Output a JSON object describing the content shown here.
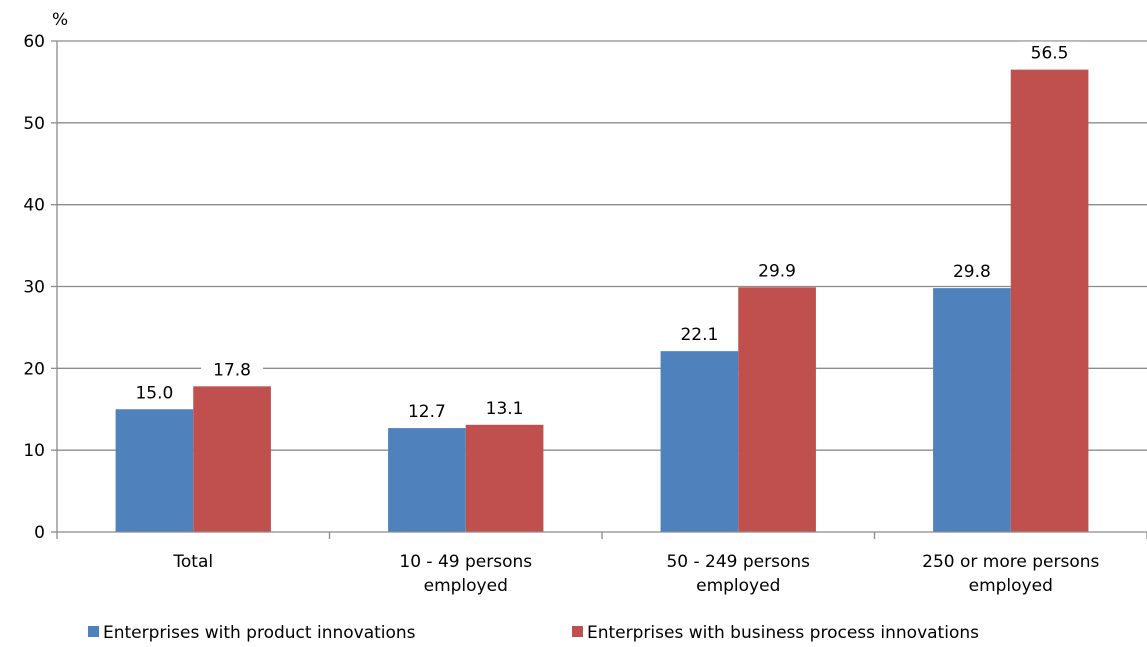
{
  "chart_data": {
    "type": "bar",
    "unit": "%",
    "categories": [
      [
        "Total"
      ],
      [
        "10 - 49 persons",
        "employed"
      ],
      [
        "50 - 249 persons",
        "employed"
      ],
      [
        "250 or more persons",
        "employed"
      ]
    ],
    "series": [
      {
        "name": "Enterprises with product innovations",
        "color": "#4f81bd",
        "values": [
          15.0,
          12.7,
          22.1,
          29.8
        ],
        "labels": [
          "15.0",
          "12.7",
          "22.1",
          "29.8"
        ]
      },
      {
        "name": "Enterprises with business process innovations",
        "color": "#c0504d",
        "values": [
          17.8,
          13.1,
          29.9,
          56.5
        ],
        "labels": [
          "17.8",
          "13.1",
          "29.9",
          "56.5"
        ]
      }
    ],
    "ylim": [
      0,
      60
    ],
    "yticks": [
      0,
      10,
      20,
      30,
      40,
      50,
      60
    ],
    "grid": true,
    "legend_position": "bottom"
  }
}
